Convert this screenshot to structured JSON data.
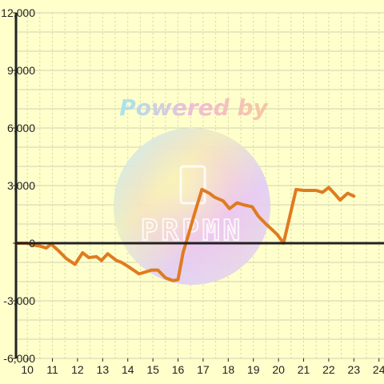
{
  "chart_data": {
    "type": "line",
    "title": "",
    "xlabel": "",
    "ylabel": "",
    "xlim": [
      9.55,
      24.2
    ],
    "ylim": [
      -6000,
      12000
    ],
    "grid": true,
    "x_ticks": [
      10,
      11,
      12,
      13,
      14,
      15,
      16,
      17,
      18,
      19,
      20,
      21,
      22,
      23,
      24
    ],
    "x_tick_labels": [
      "10",
      "11",
      "12",
      "13",
      "14",
      "15",
      "16",
      "17",
      "18",
      "19",
      "20",
      "21",
      "22",
      "23",
      "24"
    ],
    "y_ticks": [
      -6000,
      -3000,
      0,
      3000,
      6000,
      9000,
      12000
    ],
    "y_tick_labels": [
      "-6,000",
      "-3,000",
      "0",
      "3,000",
      "6,000",
      "9,000",
      "12,000"
    ],
    "series": [
      {
        "color": "#e07b20",
        "x": [
          9.55,
          10.0,
          10.25,
          10.5,
          10.75,
          10.95,
          11.25,
          11.55,
          11.9,
          12.2,
          12.45,
          12.75,
          12.95,
          13.2,
          13.55,
          13.75,
          14.0,
          14.45,
          14.7,
          14.95,
          15.2,
          15.5,
          15.8,
          16.0,
          16.2,
          16.45,
          16.65,
          16.95,
          17.25,
          17.45,
          17.8,
          18.05,
          18.35,
          18.6,
          18.95,
          19.2,
          19.5,
          19.75,
          19.95,
          20.2,
          20.7,
          21.0,
          21.5,
          21.75,
          22.0,
          22.25,
          22.45,
          22.75,
          23.0
        ],
        "y": [
          0,
          0,
          -100,
          -150,
          -250,
          -50,
          -400,
          -800,
          -1100,
          -500,
          -750,
          -700,
          -900,
          -550,
          -900,
          -1000,
          -1200,
          -1600,
          -1500,
          -1400,
          -1400,
          -1800,
          -1950,
          -1900,
          -500,
          600,
          1500,
          2800,
          2600,
          2400,
          2200,
          1800,
          2100,
          2000,
          1900,
          1400,
          1000,
          700,
          450,
          0,
          2800,
          2750,
          2750,
          2650,
          2900,
          2550,
          2250,
          2600,
          2450
        ]
      }
    ]
  },
  "watermark": {
    "line1": "Powered by",
    "logo_text": "PRPMN"
  },
  "colors": {
    "background": "#ffffcc",
    "grid": "#d2d2b0",
    "axis": "#222222",
    "line": "#e07b20"
  }
}
